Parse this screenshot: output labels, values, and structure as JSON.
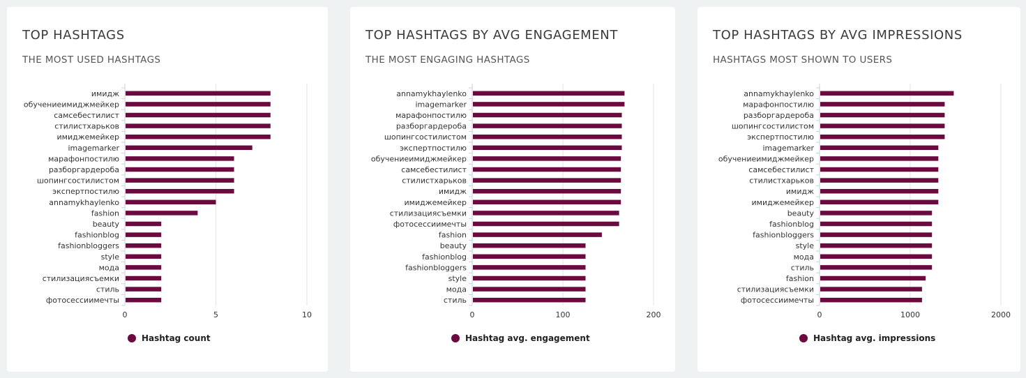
{
  "colors": {
    "bar": "#6b0a3f",
    "grid": "#e3e3e3",
    "axis": "#c8d2dc",
    "background": "#eef2f3"
  },
  "panels": [
    {
      "title": "TOP HASHTAGS",
      "subtitle": "THE MOST USED HASHTAGS",
      "legend": "Hashtag count"
    },
    {
      "title": "TOP HASHTAGS BY AVG ENGAGEMENT",
      "subtitle": "THE MOST ENGAGING HASHTAGS",
      "legend": "Hashtag avg. engagement"
    },
    {
      "title": "TOP HASHTAGS BY AVG IMPRESSIONS",
      "subtitle": "HASHTAGS MOST SHOWN TO USERS",
      "legend": "Hashtag avg. impressions"
    }
  ],
  "chart_data": [
    {
      "type": "bar",
      "orientation": "horizontal",
      "categories": [
        "имидж",
        "обучениеимиджмейкер",
        "самсебестилист",
        "стилистхарьков",
        "имиджемейкер",
        "imagemarker",
        "марафонпостилю",
        "разборгардероба",
        "шопингсостилистом",
        "экспертпостилю",
        "annamykhaylenko",
        "fashion",
        "beauty",
        "fashionblog",
        "fashionbloggers",
        "style",
        "мода",
        "стилизациясъемки",
        "стиль",
        "фотосессиимечты"
      ],
      "series": [
        {
          "name": "Hashtag count",
          "values": [
            8,
            8,
            8,
            8,
            8,
            7,
            6,
            6,
            6,
            6,
            5,
            4,
            2,
            2,
            2,
            2,
            2,
            2,
            2,
            2
          ]
        }
      ],
      "xlim": [
        0,
        10
      ],
      "xticks": [
        "0",
        "5",
        "10"
      ],
      "grid": true,
      "legend_position": "bottom"
    },
    {
      "type": "bar",
      "orientation": "horizontal",
      "categories": [
        "annamykhaylenko",
        "imagemarker",
        "марафонпостилю",
        "разборгардероба",
        "шопингсостилистом",
        "экспертпостилю",
        "обучениеимиджмейкер",
        "самсебестилист",
        "стилистхарьков",
        "имидж",
        "имиджемейкер",
        "стилизациясъемки",
        "фотосессиимечты",
        "fashion",
        "beauty",
        "fashionblog",
        "fashionbloggers",
        "style",
        "мода",
        "стиль"
      ],
      "series": [
        {
          "name": "Hashtag avg. engagement",
          "values": [
            168,
            168,
            165,
            165,
            165,
            165,
            164,
            164,
            164,
            164,
            164,
            162,
            162,
            143,
            125,
            125,
            125,
            125,
            125,
            125
          ]
        }
      ],
      "xlim": [
        0,
        200
      ],
      "xticks": [
        "0",
        "100",
        "200"
      ],
      "grid": true,
      "legend_position": "bottom"
    },
    {
      "type": "bar",
      "orientation": "horizontal",
      "categories": [
        "annamykhaylenko",
        "марафонпостилю",
        "разборгардероба",
        "шопингсостилистом",
        "экспертпостилю",
        "imagemarker",
        "обучениеимиджмейкер",
        "самсебестилист",
        "стилистхарьков",
        "имидж",
        "имиджемейкер",
        "beauty",
        "fashionblog",
        "fashionbloggers",
        "style",
        "мода",
        "стиль",
        "fashion",
        "стилизациясъемки",
        "фотосессиимечты"
      ],
      "series": [
        {
          "name": "Hashtag avg. impressions",
          "values": [
            1480,
            1380,
            1380,
            1380,
            1380,
            1310,
            1310,
            1310,
            1310,
            1310,
            1310,
            1240,
            1240,
            1240,
            1240,
            1240,
            1240,
            1170,
            1130,
            1130
          ]
        }
      ],
      "xlim": [
        0,
        2000
      ],
      "xticks": [
        "0",
        "1000",
        "2000"
      ],
      "grid": true,
      "legend_position": "bottom"
    }
  ]
}
